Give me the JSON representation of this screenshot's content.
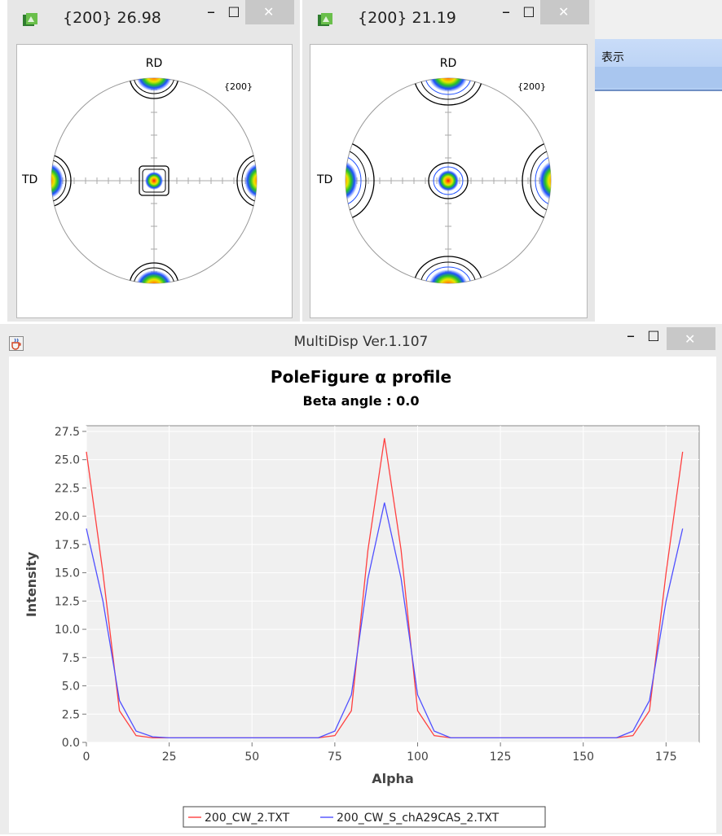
{
  "pole_windows": [
    {
      "title": "{200} 26.98",
      "rd_label": "RD",
      "td_label": "TD",
      "family_label": "{200}"
    },
    {
      "title": "{200} 21.19",
      "rd_label": "RD",
      "td_label": "TD",
      "family_label": "{200}"
    }
  ],
  "window_buttons": {
    "minimize": "–",
    "maximize": "☐",
    "close": "✕"
  },
  "side_panel": {
    "header_label": "表示"
  },
  "main_window": {
    "title": "MultiDisp Ver.1.107",
    "icon": "java-cup-icon"
  },
  "chart_data": {
    "type": "line",
    "title": "PoleFigure α profile",
    "subtitle": "Beta angle : 0.0",
    "xlabel": "Alpha",
    "ylabel": "Intensity",
    "xlim": [
      0,
      185
    ],
    "ylim": [
      0,
      28
    ],
    "xticks": [
      "0",
      "25",
      "50",
      "75",
      "100",
      "125",
      "150",
      "175"
    ],
    "yticks": [
      "0.0",
      "2.5",
      "5.0",
      "7.5",
      "10.0",
      "12.5",
      "15.0",
      "17.5",
      "20.0",
      "22.5",
      "25.0",
      "27.5"
    ],
    "grid": true,
    "legend_position": "bottom",
    "x": [
      0,
      5,
      10,
      15,
      20,
      25,
      30,
      35,
      40,
      45,
      50,
      55,
      60,
      65,
      70,
      75,
      80,
      85,
      90,
      95,
      100,
      105,
      110,
      115,
      120,
      125,
      130,
      135,
      140,
      145,
      150,
      155,
      160,
      165,
      170,
      175,
      180
    ],
    "series": [
      {
        "name": "200_CW_2.TXT",
        "color": "#ff4040",
        "values": [
          25.7,
          15.0,
          2.8,
          0.6,
          0.4,
          0.4,
          0.4,
          0.4,
          0.4,
          0.4,
          0.4,
          0.4,
          0.4,
          0.4,
          0.4,
          0.6,
          2.8,
          17.0,
          26.9,
          17.0,
          2.8,
          0.6,
          0.4,
          0.4,
          0.4,
          0.4,
          0.4,
          0.4,
          0.4,
          0.4,
          0.4,
          0.4,
          0.4,
          0.6,
          2.8,
          15.0,
          25.7
        ]
      },
      {
        "name": "200_CW_S_chA29CAS_2.TXT",
        "color": "#5050ff",
        "values": [
          18.9,
          12.5,
          3.7,
          1.0,
          0.5,
          0.4,
          0.4,
          0.4,
          0.4,
          0.4,
          0.4,
          0.4,
          0.4,
          0.4,
          0.4,
          1.0,
          4.2,
          14.5,
          21.2,
          14.5,
          4.2,
          1.0,
          0.4,
          0.4,
          0.4,
          0.4,
          0.4,
          0.4,
          0.4,
          0.4,
          0.4,
          0.4,
          0.4,
          1.0,
          3.7,
          12.5,
          18.9
        ]
      }
    ]
  }
}
